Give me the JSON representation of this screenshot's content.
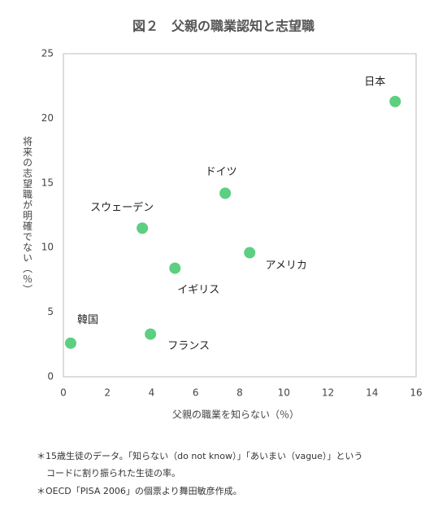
{
  "chart_data": {
    "type": "scatter",
    "title": "図２　父親の職業認知と志望職",
    "x_label": "父親の職業を知らない（％）",
    "y_label": "将来の志望職が明確でない（％）",
    "point_labels": [
      "日本",
      "ドイツ",
      "スウェーデン",
      "アメリカ",
      "イギリス",
      "韓国",
      "フランス"
    ],
    "x": [
      15.05,
      7.34,
      3.58,
      8.45,
      5.06,
      0.33,
      3.95
    ],
    "values": [
      21.3,
      14.2,
      11.5,
      9.6,
      8.4,
      2.6,
      3.3
    ],
    "color": "#5ccf80",
    "xlim": [
      0,
      16
    ],
    "xticks": [
      0,
      2,
      4,
      6,
      8,
      10,
      12,
      14,
      16
    ],
    "ylim": [
      0,
      25
    ],
    "yticks": [
      0,
      5,
      10,
      15,
      20,
      25
    ],
    "grid": false,
    "notes": [
      "＊15歳生徒のデータ。「知らない（do not know）」「あいまい（vague）」という",
      "コードに割り振られた生徒の率。",
      "＊OECD「PISA 2006」の個票より舞田敏彦作成。"
    ]
  }
}
